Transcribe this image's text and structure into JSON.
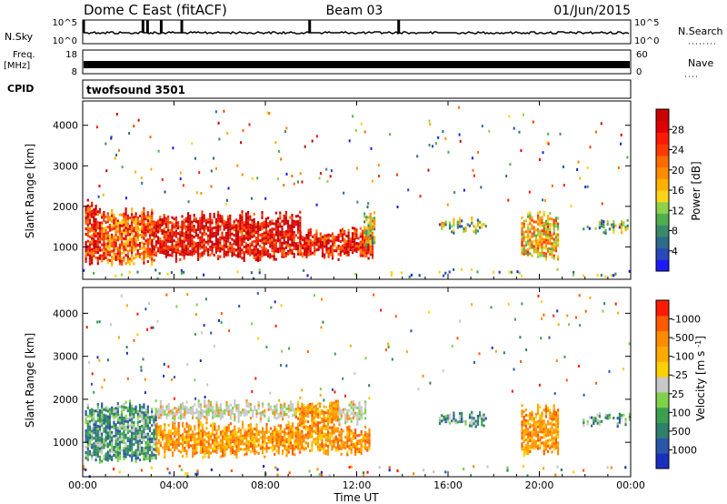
{
  "header": {
    "station": "Dome C East (fitACF)",
    "beam": "Beam 03",
    "date": "01/Jun/2015"
  },
  "strips": {
    "nsky_label": "N.Sky",
    "nsky_top": "10^5",
    "nsky_bottom": "10^0",
    "nsearch_top": "10^5",
    "nsearch_bottom": "10^0",
    "nsearch_label": "N.Search",
    "freq_label": "Freq.",
    "freq_unit": "[MHz]",
    "freq_top": "18",
    "freq_bottom": "8",
    "nave_top": "60",
    "nave_bottom": "0",
    "nave_label": "Nave",
    "cpid_label": "CPID",
    "cpid_value": "twofsound 3501"
  },
  "chart_data": [
    {
      "type": "heatmap",
      "name": "power",
      "ylabel": "Slant Range [km]",
      "yticks": [
        1000,
        2000,
        3000,
        4000
      ],
      "ylim": [
        200,
        4600
      ],
      "xlim": [
        0,
        24
      ],
      "colorbar": {
        "label": "Power [dB]",
        "ticks": [
          "4",
          "8",
          "12",
          "16",
          "20",
          "24",
          "28"
        ],
        "colors": [
          "#1a1aff",
          "#2a49b8",
          "#2e6b8c",
          "#3a8a6a",
          "#4fae4f",
          "#8fd14a",
          "#ffd21a",
          "#ffb000",
          "#ff8c00",
          "#ff6a00",
          "#ff3a00",
          "#ff1a00",
          "#e00000",
          "#c80000"
        ]
      },
      "regions": [
        {
          "t0": 0.1,
          "t1": 0.8,
          "r0": 500,
          "r1": 2200,
          "level": 0.85
        },
        {
          "t0": 0.8,
          "t1": 3.0,
          "r0": 550,
          "r1": 2000,
          "level": 0.7
        },
        {
          "t0": 3.0,
          "t1": 9.5,
          "r0": 650,
          "r1": 1900,
          "level": 0.9
        },
        {
          "t0": 9.5,
          "t1": 12.7,
          "r0": 700,
          "r1": 1500,
          "level": 0.85
        },
        {
          "t0": 12.3,
          "t1": 12.8,
          "r0": 1000,
          "r1": 2000,
          "level": 0.45
        },
        {
          "t0": 15.6,
          "t1": 17.7,
          "r0": 1350,
          "r1": 1750,
          "level": 0.35
        },
        {
          "t0": 19.2,
          "t1": 20.8,
          "r0": 700,
          "r1": 1900,
          "level": 0.55
        },
        {
          "t0": 21.9,
          "t1": 24.0,
          "r0": 1350,
          "r1": 1700,
          "level": 0.3
        },
        {
          "t0": 0.0,
          "t1": 24.0,
          "r0": 220,
          "r1": 480,
          "level": 0.25
        }
      ]
    },
    {
      "type": "heatmap",
      "name": "velocity",
      "ylabel": "Slant Range [km]",
      "yticks": [
        1000,
        2000,
        3000,
        4000
      ],
      "ylim": [
        200,
        4600
      ],
      "xlim": [
        0,
        24
      ],
      "xticks": [
        "00:00",
        "04:00",
        "08:00",
        "12:00",
        "16:00",
        "20:00",
        "00:00"
      ],
      "xlabel": "Time UT",
      "colorbar": {
        "label": "Velocity [m s^-1]",
        "ticks": [
          "1000",
          "500",
          "100",
          "25",
          "-25",
          "-100",
          "-500",
          "-1000"
        ],
        "colors": [
          "#1a2fbf",
          "#2a55aa",
          "#2f7f6a",
          "#3aa04f",
          "#7fd24a",
          "#c8c8c8",
          "#ffd000",
          "#ffaa00",
          "#ff8c00",
          "#ff5a00",
          "#ff1a00"
        ]
      },
      "regions": [
        {
          "t0": 0.1,
          "t1": 3.2,
          "r0": 500,
          "r1": 2000,
          "kind": "green"
        },
        {
          "t0": 3.2,
          "t1": 9.3,
          "r0": 650,
          "r1": 1500,
          "kind": "orange"
        },
        {
          "t0": 3.2,
          "t1": 9.3,
          "r0": 1500,
          "r1": 2000,
          "kind": "grey"
        },
        {
          "t0": 9.3,
          "t1": 11.2,
          "r0": 700,
          "r1": 2000,
          "kind": "orange"
        },
        {
          "t0": 11.2,
          "t1": 12.6,
          "r0": 700,
          "r1": 1400,
          "kind": "orange"
        },
        {
          "t0": 11.2,
          "t1": 12.4,
          "r0": 1400,
          "r1": 2000,
          "kind": "grey"
        },
        {
          "t0": 15.6,
          "t1": 17.7,
          "r0": 1350,
          "r1": 1750,
          "kind": "green"
        },
        {
          "t0": 19.2,
          "t1": 20.8,
          "r0": 700,
          "r1": 1900,
          "kind": "orange"
        },
        {
          "t0": 21.9,
          "t1": 24.0,
          "r0": 1350,
          "r1": 1700,
          "kind": "green"
        },
        {
          "t0": 0.0,
          "t1": 24.0,
          "r0": 220,
          "r1": 480,
          "kind": "mixed"
        }
      ]
    }
  ]
}
